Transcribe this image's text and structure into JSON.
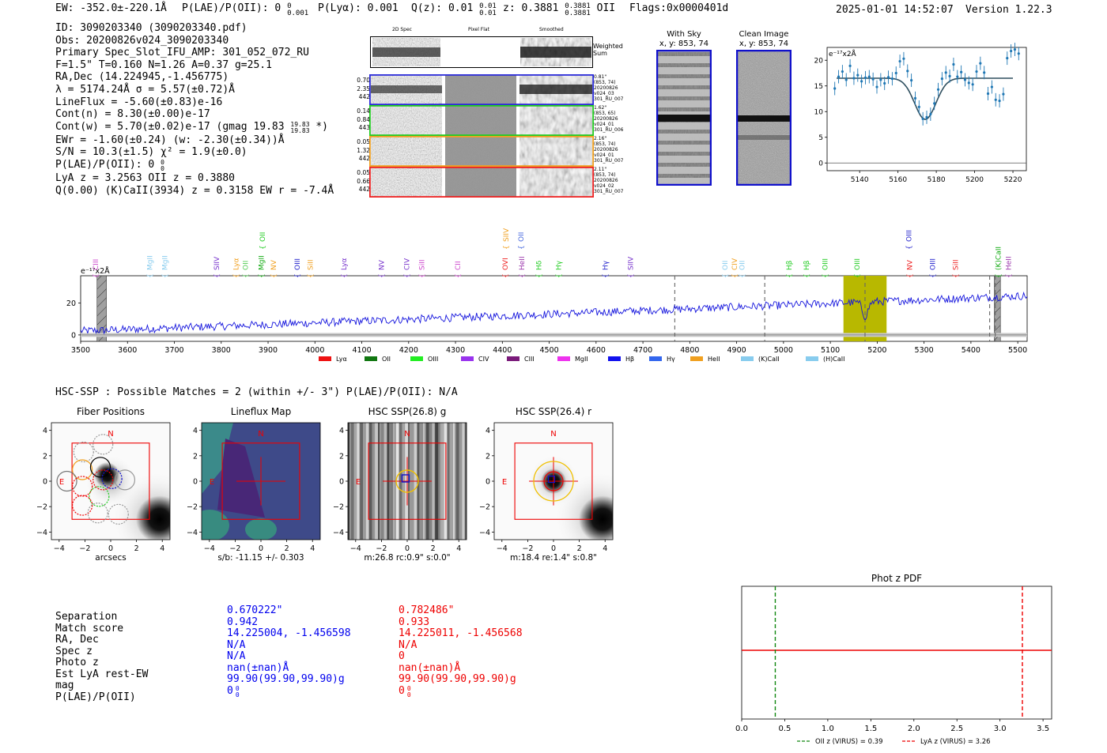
{
  "header": {
    "ew": "EW: -352.0±-220.1Å",
    "plae": "P(LAE)/P(OII): 0",
    "plae_sup": "0",
    "plae_sub": "0.001",
    "plya": "P(Lyα): 0.001",
    "qz": "Q(z): 0.01",
    "qz_sup": "0.01",
    "qz_sub": "0.01",
    "z": "z: 0.3881",
    "z_sup": "0.3881",
    "z_sub": "0.3881",
    "z_line": "OII",
    "flags": "Flags:0x0000401d",
    "datetime": "2025-01-01 14:52:07",
    "version": "Version 1.22.3"
  },
  "info": {
    "lines": [
      "ID: 3090203340 (3090203340.pdf)",
      "Obs: 20200826v024_3090203340",
      "Primary Spec_Slot_IFU_AMP: 301_052_072_RU",
      "F=1.5\"  T=0.160  N=1.26  A=0.37  g=25.1",
      "RA,Dec (14.224945,-1.456775)",
      "λ = 5174.24Å  σ = 5.57(±0.72)Å",
      "LineFlux = -5.60(±0.83)e-16",
      "Cont(n) = 8.30(±0.00)e-17",
      "Cont(w) = 5.70(±0.02)e-17 (gmag 19.83",
      "EWr = -1.60(±0.24) (w: -2.30(±0.34))Å",
      "S/N = 10.3(±1.5)  χ² = 1.9(±0.0)",
      "P(LAE)/P(OII): 0",
      "LyA z = 3.2563  OII z = 0.3880",
      "Q(0.00) (K)CaII(3934) z = 0.3158  EW r = -7.4Å"
    ],
    "gmag_sup": "19.83",
    "gmag_sub": "19.83",
    "gmag_tail": "*)",
    "plae_sup": "0",
    "plae_sub": "0"
  },
  "spec2d": {
    "col_titles": [
      "2D Spec",
      "Pixel Flat",
      "Smoothed"
    ],
    "weighted_label": "Weighted Sum",
    "fibers": [
      {
        "left": [
          "0.70",
          "2.35",
          "442"
        ],
        "right": [
          "0.81\"",
          "(853, 74)",
          "20200826",
          "v024_03",
          "301_RU_007"
        ],
        "color": "#2b2bd9"
      },
      {
        "left": [
          "0.14",
          "0.84",
          "443"
        ],
        "right": [
          "1.62\"",
          "(853, 65)",
          "20200826",
          "v024_01",
          "301_RU_006"
        ],
        "color": "#22cc22"
      },
      {
        "left": [
          "0.05",
          "1.32",
          "442"
        ],
        "right": [
          "2.16\"",
          "(853, 74)",
          "20200826",
          "v024_01",
          "301_RU_007"
        ],
        "color": "#f0a020"
      },
      {
        "left": [
          "0.05",
          "0.66",
          "442"
        ],
        "right": [
          "2.11\"",
          "(853, 74)",
          "20200826",
          "v024_02",
          "301_RU_007"
        ],
        "color": "#ee2222"
      }
    ]
  },
  "stamps": {
    "with_sky_title": "With Sky",
    "with_sky_sub": "x, y: 853, 74",
    "clean_title": "Clean Image",
    "clean_sub": "x, y: 853, 74"
  },
  "zoom_chart": {
    "type": "scatter",
    "ylabel": "e⁻¹⁷x2Å",
    "xticks": [
      5140,
      5160,
      5180,
      5200,
      5220
    ],
    "yticks": [
      0,
      5,
      10,
      15,
      20
    ],
    "xlim": [
      5123,
      5227
    ],
    "ylim": [
      -1.5,
      22.5
    ],
    "fit_continuum": 16.5,
    "fit_center": 5174.24,
    "fit_sigma": 5.57,
    "fit_depth": 8.0,
    "x": [
      5127,
      5129,
      5131,
      5133,
      5135,
      5137,
      5139,
      5141,
      5143,
      5145,
      5147,
      5149,
      5151,
      5153,
      5155,
      5157,
      5159,
      5161,
      5163,
      5165,
      5167,
      5169,
      5171,
      5173,
      5175,
      5177,
      5179,
      5181,
      5183,
      5185,
      5187,
      5189,
      5191,
      5193,
      5195,
      5197,
      5199,
      5201,
      5203,
      5205,
      5207,
      5209,
      5211,
      5213,
      5215,
      5217,
      5219,
      5221,
      5223
    ],
    "y": [
      14.5,
      16.8,
      17.8,
      16.2,
      18.9,
      16.5,
      17.1,
      15.9,
      16.6,
      16.8,
      16.3,
      14.8,
      16.2,
      15.5,
      16.7,
      16.4,
      17.5,
      19.8,
      20.3,
      17.9,
      16.1,
      12.6,
      10.9,
      8.6,
      8.9,
      9.5,
      11.6,
      14.3,
      16.4,
      17.6,
      16.9,
      19.2,
      16.8,
      17.7,
      16.2,
      15.6,
      15.3,
      17.8,
      19.4,
      17.6,
      13.5,
      14.8,
      12.3,
      12.1,
      13.4,
      20.4,
      21.8,
      22.1,
      21.3
    ]
  },
  "full_spectrum": {
    "type": "line",
    "ylabel": "e⁻¹⁷x2Å",
    "xticks": [
      3500,
      3600,
      3700,
      3800,
      3900,
      4000,
      4100,
      4200,
      4300,
      4400,
      4500,
      4600,
      4700,
      4800,
      4900,
      5000,
      5100,
      5200,
      5300,
      5400,
      5500
    ],
    "yticks": [
      0,
      20
    ],
    "xlim": [
      3500,
      5520
    ],
    "ylim": [
      -4,
      37
    ],
    "continuum_start": 2.5,
    "continuum_end": 24.5,
    "line_center": 5174.24,
    "line_depth": 9.0,
    "highlight_range": [
      5128,
      5220
    ],
    "dashed_lines": [
      4768,
      4960,
      5174,
      5440,
      5452
    ],
    "hatched_regions": [
      [
        3535,
        3555
      ],
      [
        5450,
        5463
      ]
    ],
    "line_markers": [
      {
        "name": "CIII",
        "wave": 3532,
        "row": 0,
        "color": "#cc44cc"
      },
      {
        "name": "MgII",
        "wave": 3648,
        "row": 0,
        "color": "#88ccee"
      },
      {
        "name": "MgII",
        "wave": 3680,
        "row": 0,
        "color": "#88ccee"
      },
      {
        "name": "SIIV",
        "wave": 3790,
        "row": 1,
        "color": "#7733cc"
      },
      {
        "name": "Lyα",
        "wave": 3832,
        "row": 1,
        "color": "#f0a020"
      },
      {
        "name": "OII",
        "wave": 3852,
        "row": 1,
        "color": "#55cc55"
      },
      {
        "name": "MgII",
        "wave": 3886,
        "row": 1,
        "color": "#11aa11"
      },
      {
        "name": "OII",
        "wave": 3888,
        "row": 2,
        "color": "#22cc22"
      },
      {
        "name": "NV",
        "wave": 3912,
        "row": 1,
        "color": "#f0a020"
      },
      {
        "name": "OIII",
        "wave": 3962,
        "row": 1,
        "color": "#2222cc"
      },
      {
        "name": "SiII",
        "wave": 3990,
        "row": 1,
        "color": "#f0a020"
      },
      {
        "name": "Lyα",
        "wave": 4062,
        "row": 1,
        "color": "#7733cc"
      },
      {
        "name": "NV",
        "wave": 4142,
        "row": 1,
        "color": "#7733cc"
      },
      {
        "name": "CIV",
        "wave": 4196,
        "row": 1,
        "color": "#7733cc"
      },
      {
        "name": "SiII",
        "wave": 4228,
        "row": 1,
        "color": "#cc44cc"
      },
      {
        "name": "CII",
        "wave": 4305,
        "row": 1,
        "color": "#cc44cc"
      },
      {
        "name": "OVI",
        "wave": 4406,
        "row": 1,
        "color": "#ee2222"
      },
      {
        "name": "SIIV",
        "wave": 4408,
        "row": 2,
        "color": "#f0a020"
      },
      {
        "name": "OII",
        "wave": 4440,
        "row": 2,
        "color": "#4466dd"
      },
      {
        "name": "HeII",
        "wave": 4442,
        "row": 1,
        "color": "#9933aa"
      },
      {
        "name": "Hδ",
        "wave": 4478,
        "row": 1,
        "color": "#22cc22"
      },
      {
        "name": "Hγ",
        "wave": 4520,
        "row": 1,
        "color": "#22cc22"
      },
      {
        "name": "Hγ",
        "wave": 4620,
        "row": 1,
        "color": "#2222cc"
      },
      {
        "name": "SIIV",
        "wave": 4674,
        "row": 1,
        "color": "#7733cc"
      },
      {
        "name": "OII",
        "wave": 4875,
        "row": 1,
        "color": "#88ccee"
      },
      {
        "name": "CIV",
        "wave": 4896,
        "row": 1,
        "color": "#f0a020"
      },
      {
        "name": "OII",
        "wave": 4912,
        "row": 1,
        "color": "#88ccee"
      },
      {
        "name": "Hβ",
        "wave": 5012,
        "row": 1,
        "color": "#22cc22"
      },
      {
        "name": "Hβ",
        "wave": 5049,
        "row": 1,
        "color": "#22cc22"
      },
      {
        "name": "OIII",
        "wave": 5089,
        "row": 1,
        "color": "#22cc22"
      },
      {
        "name": "OIII",
        "wave": 5157,
        "row": 1,
        "color": "#22cc22"
      },
      {
        "name": "OIII",
        "wave": 5268,
        "row": 2,
        "color": "#2222cc"
      },
      {
        "name": "NV",
        "wave": 5269,
        "row": 1,
        "color": "#ee2222"
      },
      {
        "name": "OIII",
        "wave": 5318,
        "row": 1,
        "color": "#2222cc"
      },
      {
        "name": "SiII",
        "wave": 5367,
        "row": 1,
        "color": "#ee2222"
      },
      {
        "name": "(K)CaII",
        "wave": 5458,
        "row": 1,
        "color": "#11aa11"
      },
      {
        "name": "HeII",
        "wave": 5480,
        "row": 1,
        "color": "#9933aa"
      }
    ],
    "legend": [
      {
        "label": "Lyα",
        "color": "#ee1111"
      },
      {
        "label": "OII",
        "color": "#117711"
      },
      {
        "label": "OIII",
        "color": "#22ee22"
      },
      {
        "label": "CIV",
        "color": "#9933ee"
      },
      {
        "label": "CIII",
        "color": "#7a1a7a"
      },
      {
        "label": "MgII",
        "color": "#ee33ee"
      },
      {
        "label": "Hβ",
        "color": "#1111ee"
      },
      {
        "label": "Hγ",
        "color": "#3366ee"
      },
      {
        "label": "HeII",
        "color": "#f0a020"
      },
      {
        "label": "(K)CaII",
        "color": "#88ccee"
      },
      {
        "label": "(H)CaII",
        "color": "#88ccee"
      }
    ]
  },
  "hsc": {
    "summary": "HSC-SSP : Possible Matches = 2 (within +/- 3\")  P(LAE)/P(OII): N/A",
    "panels": [
      {
        "title": "Fiber Positions",
        "caption": "arcsecs"
      },
      {
        "title": "Lineflux Map",
        "caption": "s/b: -11.15 +/- 0.303"
      },
      {
        "title": "HSC SSP(26.8) g",
        "caption": "m:26.8 rc:0.9\"  s:0.0\""
      },
      {
        "title": "HSC SSP(26.4) r",
        "caption": "m:18.4  re:1.4\"  s:0.8\""
      }
    ],
    "north": "N",
    "east": "E",
    "ticks": [
      "4",
      "2",
      "0",
      "−2",
      "−4"
    ],
    "xticks": [
      "−4",
      "−2",
      "0",
      "2",
      "4"
    ]
  },
  "match_table": {
    "labels": [
      "Separation",
      "Match score",
      "RA, Dec",
      "Spec z",
      "Photo z",
      "Est LyA rest-EW",
      "mag",
      "P(LAE)/P(OII)"
    ],
    "blue": [
      "0.670222\"",
      "0.942",
      "14.225004, -1.456598",
      "N/A",
      "N/A",
      "nan(±nan)Å",
      "99.90(99.90,99.90)g",
      "0"
    ],
    "red": [
      "0.782486\"",
      "0.933",
      "14.225011, -1.456568",
      "N/A",
      "0",
      "nan(±nan)Å",
      "99.90(99.90,99.90)g",
      "0"
    ],
    "sup": "0",
    "sub": "0"
  },
  "photz": {
    "type": "line",
    "title": "Phot z PDF",
    "xticks": [
      "0.0",
      "0.5",
      "1.0",
      "1.5",
      "2.0",
      "2.5",
      "3.0",
      "3.5"
    ],
    "xlim": [
      0,
      3.6
    ],
    "oii_z": 0.39,
    "lya_z": 3.26,
    "legend_oii": "OII z (VIRUS) = 0.39",
    "legend_lya": "LyA z (VIRUS) = 3.26"
  }
}
